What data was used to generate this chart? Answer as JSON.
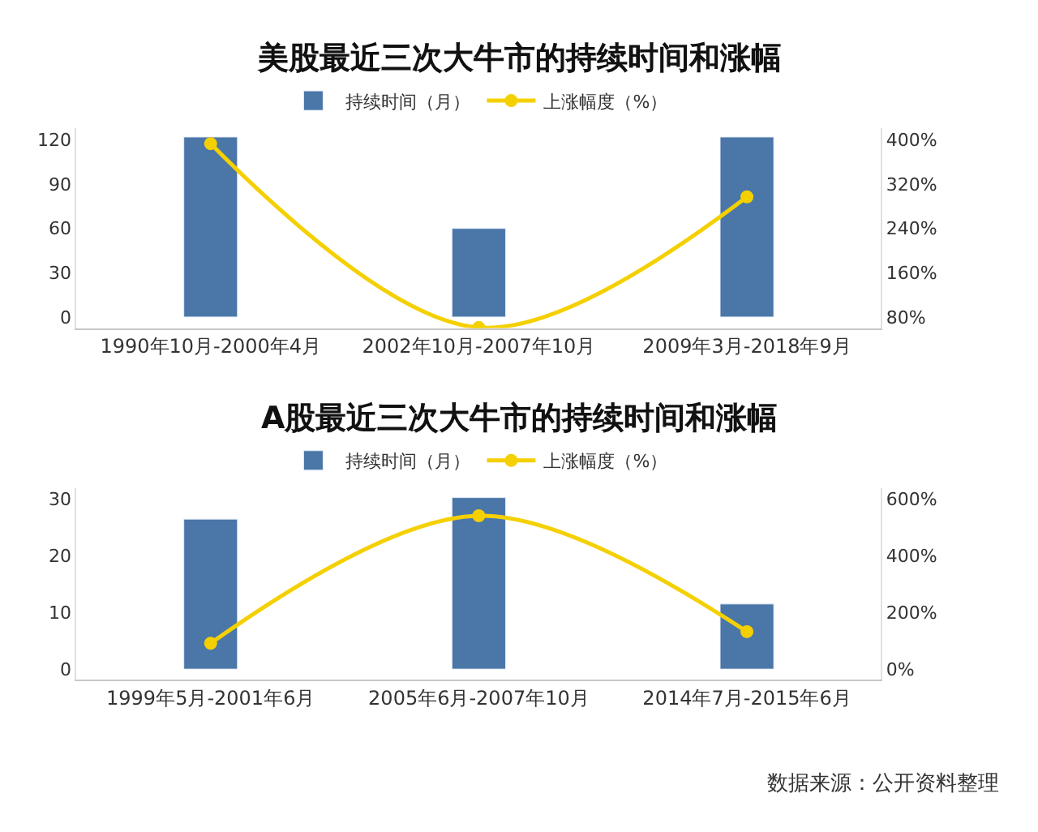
{
  "chart_data": [
    {
      "type": "bar",
      "title": "美股最近三次大牛市的持续时间和涨幅",
      "categories": [
        "1990年10月-2000年4月",
        "2002年10月-2007年10月",
        "2009年3月-2018年9月"
      ],
      "series": [
        {
          "name": "持续时间（月）",
          "color": "#4a76a8",
          "values": [
            122,
            60,
            122
          ]
        },
        {
          "name": "上涨幅度（%）",
          "type": "line",
          "axis": "y2",
          "color": "#f5d000",
          "values": [
            393,
            61,
            297
          ]
        }
      ],
      "ylim": [
        -7.5,
        128
      ],
      "yticks": [
        0,
        30,
        60,
        90,
        120
      ],
      "y2lim": [
        60,
        421
      ],
      "y2ticks": [
        {
          "value": 80,
          "label": "80%"
        },
        {
          "value": 160,
          "label": "160%"
        },
        {
          "value": 240,
          "label": "240%"
        },
        {
          "value": 320,
          "label": "320%"
        },
        {
          "value": 400,
          "label": "400%"
        }
      ],
      "legend": "top",
      "marker": "circle"
    },
    {
      "type": "bar",
      "title": "A股最近三次大牛市的持续时间和涨幅",
      "categories": [
        "1999年5月-2001年6月",
        "2005年6月-2007年10月",
        "2014年7月-2015年6月"
      ],
      "series": [
        {
          "name": "持续时间（月）",
          "color": "#4a76a8",
          "values": [
            26.5,
            30.3,
            11.5
          ]
        },
        {
          "name": "上涨幅度（%）",
          "type": "line",
          "axis": "y2",
          "color": "#f5d000",
          "values": [
            92,
            542,
            133
          ]
        }
      ],
      "ylim": [
        -1.9,
        32
      ],
      "yticks": [
        0,
        10,
        20,
        30
      ],
      "y2lim": [
        -37,
        640
      ],
      "y2ticks": [
        {
          "value": 0,
          "label": "0%"
        },
        {
          "value": 200,
          "label": "200%"
        },
        {
          "value": 400,
          "label": "400%"
        },
        {
          "value": 600,
          "label": "600%"
        }
      ],
      "legend": "top",
      "marker": "circle",
      "annotations": [
        "数据来源：公开资料整理"
      ]
    }
  ]
}
